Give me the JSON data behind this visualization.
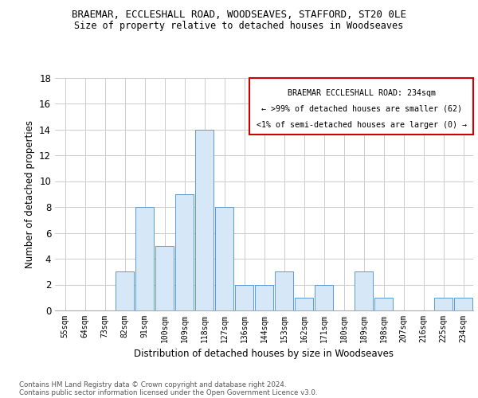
{
  "title1": "BRAEMAR, ECCLESHALL ROAD, WOODSEAVES, STAFFORD, ST20 0LE",
  "title2": "Size of property relative to detached houses in Woodseaves",
  "xlabel": "Distribution of detached houses by size in Woodseaves",
  "ylabel": "Number of detached properties",
  "categories": [
    "55sqm",
    "64sqm",
    "73sqm",
    "82sqm",
    "91sqm",
    "100sqm",
    "109sqm",
    "118sqm",
    "127sqm",
    "136sqm",
    "144sqm",
    "153sqm",
    "162sqm",
    "171sqm",
    "180sqm",
    "189sqm",
    "198sqm",
    "207sqm",
    "216sqm",
    "225sqm",
    "234sqm"
  ],
  "values": [
    0,
    0,
    0,
    3,
    8,
    5,
    9,
    14,
    8,
    2,
    2,
    3,
    1,
    2,
    0,
    3,
    1,
    0,
    0,
    1,
    1
  ],
  "bar_color": "#d6e8f7",
  "bar_edge_color": "#5b9bd5",
  "annotation_box_color": "#ffffff",
  "annotation_border_color": "#cc0000",
  "annotation_lines": [
    "BRAEMAR ECCLESHALL ROAD: 234sqm",
    "← >99% of detached houses are smaller (62)",
    "<1% of semi-detached houses are larger (0) →"
  ],
  "ylim": [
    0,
    18
  ],
  "yticks": [
    0,
    2,
    4,
    6,
    8,
    10,
    12,
    14,
    16,
    18
  ],
  "footer1": "Contains HM Land Registry data © Crown copyright and database right 2024.",
  "footer2": "Contains public sector information licensed under the Open Government Licence v3.0.",
  "background_color": "#ffffff",
  "grid_color": "#cccccc"
}
